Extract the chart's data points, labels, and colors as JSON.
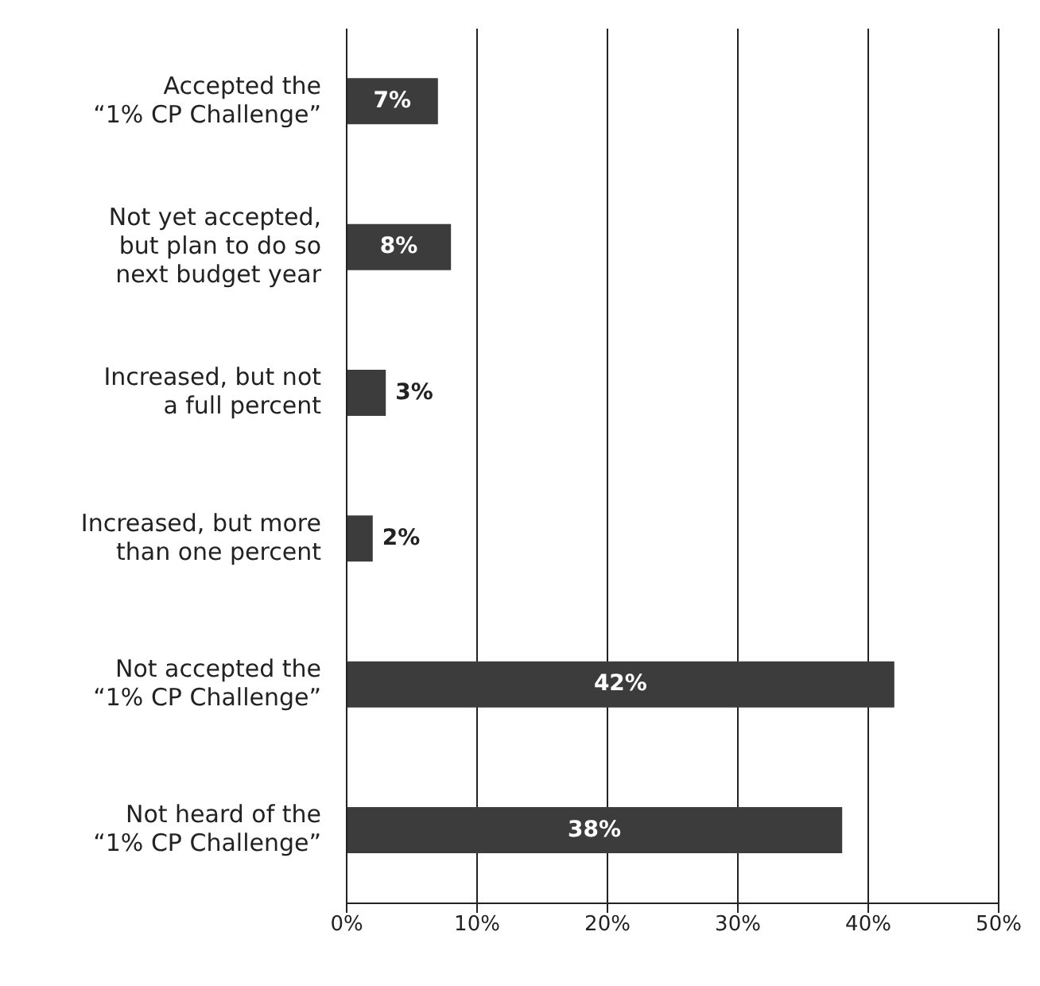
{
  "chart_data": {
    "type": "bar",
    "orientation": "horizontal",
    "categories": [
      "Accepted the\n“1% CP Challenge”",
      "Not yet accepted,\nbut plan to do so\nnext budget year",
      "Increased, but not\na full percent",
      "Increased, but more\nthan one percent",
      "Not accepted the\n“1% CP Challenge”",
      "Not heard of the\n“1% CP Challenge”"
    ],
    "values": [
      7,
      8,
      3,
      2,
      42,
      38
    ],
    "value_labels": [
      "7%",
      "8%",
      "3%",
      "2%",
      "42%",
      "38%"
    ],
    "color": "#3c3c3c",
    "xlim": [
      0,
      50
    ],
    "xticks": [
      {
        "value": 0,
        "label": "0%"
      },
      {
        "value": 10,
        "label": "10%"
      },
      {
        "value": 20,
        "label": "20%"
      },
      {
        "value": 30,
        "label": "30%"
      },
      {
        "value": 40,
        "label": "40%"
      },
      {
        "value": 50,
        "label": "50%"
      }
    ],
    "grid": "x"
  }
}
